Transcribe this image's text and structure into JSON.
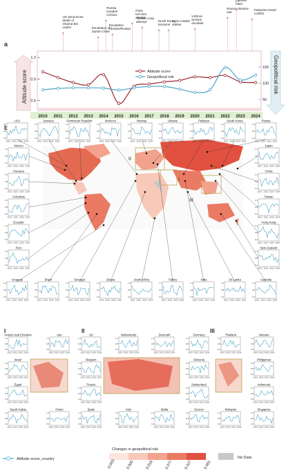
{
  "panel_a": {
    "letter": "a",
    "events": [
      {
        "text": "US announces death of Osama Bin Laden",
        "date": "2011/05/03"
      },
      {
        "text": "Escalation of Syrian Crisis",
        "date": "2013/08/21"
      },
      {
        "text": "Russia invades Crimea",
        "date": "2014/02/24"
      },
      {
        "text": "Escalation Ukraine/Russia",
        "date": "2014/08/01"
      },
      {
        "text": "Paris terrorist attacks",
        "date": "2015/11/17"
      },
      {
        "text": "Turkish coup attempt",
        "date": "2016/07/16"
      },
      {
        "text": "North Korea tensions",
        "date": "2017/08/22"
      },
      {
        "text": "Syria missile strikes",
        "date": "2018/04/12"
      },
      {
        "text": "US/Iran tension escalate",
        "date": "2020/01/07"
      },
      {
        "text": "Russia-Ukraine war",
        "date": "2022/02/24"
      },
      {
        "text": "Nord Stream pipeline blast",
        "date": "2022/09/26"
      },
      {
        "text": "Palestine-Israel conflict",
        "date": "2023/10/07"
      }
    ],
    "y_left_label": "Attitude score",
    "y_right_label": "Geopolitical risk",
    "legend": [
      "Attitude score",
      "Geopolitical risk"
    ]
  },
  "chart_data": {
    "type": "line",
    "x": [
      2010,
      2011,
      2012,
      2013,
      2014,
      2015,
      2016,
      2017,
      2018,
      2019,
      2020,
      2021,
      2022,
      2023,
      2024
    ],
    "series": [
      {
        "name": "Attitude score",
        "axis": "left",
        "values": [
          1.0,
          0.92,
          0.85,
          0.82,
          0.96,
          0.56,
          0.8,
          0.83,
          0.86,
          0.88,
          0.93,
          0.92,
          0.95,
          0.86,
          0.85
        ]
      },
      {
        "name": "Geopolitical risk",
        "axis": "right",
        "values": [
          80,
          84,
          86,
          86,
          85,
          79,
          86,
          90,
          90,
          82,
          72,
          80,
          148,
          110,
          125
        ]
      }
    ],
    "ylim_left": [
      0.5,
      1.25
    ],
    "yticks_left": [
      0.6,
      0.9,
      1.2
    ],
    "ylim_right": [
      25,
      190
    ],
    "yticks_right": [
      50,
      100,
      150
    ],
    "colors": {
      "attitude": "#9b2230",
      "risk": "#4aa3c8"
    }
  },
  "panel_b": {
    "letter": "b",
    "inset_letters": [
      "I",
      "II",
      "III"
    ],
    "map_countries": [
      "USA",
      "Jamaica",
      "Dominican Republic",
      "Morocco",
      "Norway",
      "Ukraine",
      "Pakistan",
      "South Korea",
      "Russia",
      "Mexico",
      "Japan",
      "Panama",
      "China",
      "Colombia",
      "Taiwan",
      "Ecuador",
      "Hong Kong",
      "Peru",
      "New Zealand",
      "Uruguay",
      "Brazil",
      "Senegal",
      "Ghana",
      "South Africa",
      "Turkey",
      "India",
      "Sri Lanka",
      "Australia"
    ],
    "region_I": [
      "United Arab Emirates",
      "Iran",
      "Israel",
      "Egypt",
      "Saudi Arabia",
      "Oman"
    ],
    "region_II": [
      "UK",
      "Netherlands",
      "Denmark",
      "Germany",
      "Belgium",
      "Slovenia",
      "France",
      "Switzerland",
      "Spain",
      "Italy",
      "Malta",
      "Greece"
    ],
    "region_III": [
      "Thailand",
      "Vietnam",
      "Philippines",
      "Indonesia",
      "Malaysia",
      "Singapore"
    ],
    "mini_ticks": [
      "1.2",
      "0.8",
      "0.4"
    ],
    "mini_xticks": [
      "2010",
      "2015",
      "2020",
      "2024"
    ]
  },
  "legend_bottom": {
    "line_label": "Attitude score_country",
    "colorbar_title": "Changes in geopolitical risk",
    "colorbar_ticks": [
      "-0.003",
      "0.000",
      "0.018",
      "0.077",
      "0.327",
      "0.481"
    ],
    "colorbar_colors": [
      "#fde6df",
      "#f8c8b8",
      "#f2a28d",
      "#ea7a63",
      "#e2503f"
    ],
    "no_data_label": "No Data",
    "no_data_color": "#c8c8c8"
  }
}
